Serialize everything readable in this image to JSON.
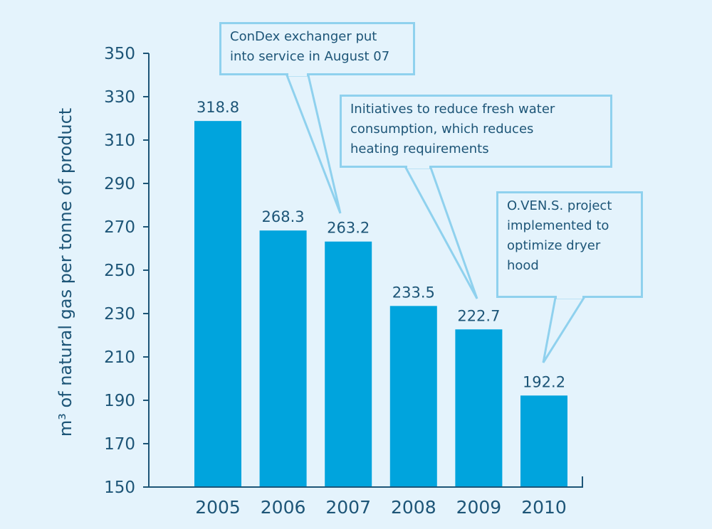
{
  "chart_data": {
    "type": "bar",
    "categories": [
      "2005",
      "2006",
      "2007",
      "2008",
      "2009",
      "2010"
    ],
    "values": [
      318.8,
      268.3,
      263.2,
      233.5,
      222.7,
      192.2
    ],
    "data_labels": [
      "318.8",
      "268.3",
      "263.2",
      "233.5",
      "222.7",
      "192.2"
    ],
    "ylabel": "m³ of natural gas per tonne of product",
    "ylim": [
      150,
      350
    ],
    "yticks": [
      150,
      170,
      190,
      210,
      230,
      250,
      270,
      290,
      310,
      330,
      350
    ],
    "grid": false,
    "bar_color": "#00a4dd",
    "annotations": [
      {
        "id": "condex",
        "lines": [
          "ConDex exchanger put",
          "into service in August 07"
        ],
        "points_to": "2007"
      },
      {
        "id": "water",
        "lines": [
          "Initiatives to reduce fresh water",
          "consumption, which reduces",
          "heating requirements"
        ],
        "points_to": "2009"
      },
      {
        "id": "ovens",
        "lines": [
          "O.VEN.S. project",
          "implemented to",
          "optimize dryer",
          "hood"
        ],
        "points_to": "2010"
      }
    ]
  },
  "colors": {
    "background": "#e4f3fc",
    "bar": "#00a4dd",
    "text": "#1d5577",
    "callout_border": "#8fd1ee"
  }
}
